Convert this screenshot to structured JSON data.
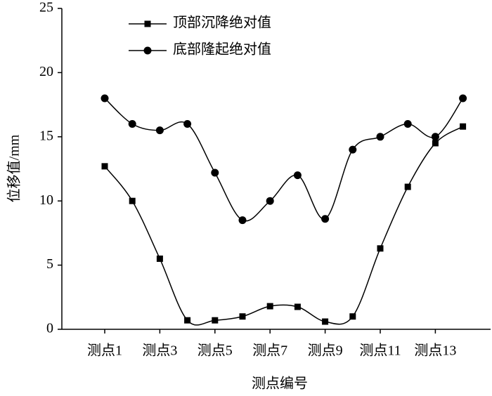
{
  "chart_data": {
    "type": "line",
    "x_label": "测点编号",
    "y_label": "位移值/mm",
    "categories": [
      "测点1",
      null,
      "测点3",
      null,
      "测点5",
      null,
      "测点7",
      null,
      "测点9",
      null,
      "测点11",
      null,
      "测点13",
      null
    ],
    "series": [
      {
        "name": "顶部沉降绝对值",
        "color": "#000000",
        "marker": "square",
        "values": [
          12.7,
          10,
          5.5,
          0.7,
          0.7,
          1.0,
          1.8,
          1.75,
          0.6,
          1.0,
          6.3,
          11.1,
          14.5,
          15.8
        ]
      },
      {
        "name": "底部隆起绝对值",
        "color": "#000000",
        "marker": "circle",
        "values": [
          18,
          16,
          15.5,
          16,
          12.2,
          8.5,
          10,
          12,
          8.6,
          14,
          15,
          16,
          15,
          18
        ]
      }
    ],
    "ylim": [
      0,
      25
    ],
    "yticks": [
      0,
      5,
      10,
      15,
      20,
      25
    ],
    "legend": "upper left",
    "smooth": true
  }
}
